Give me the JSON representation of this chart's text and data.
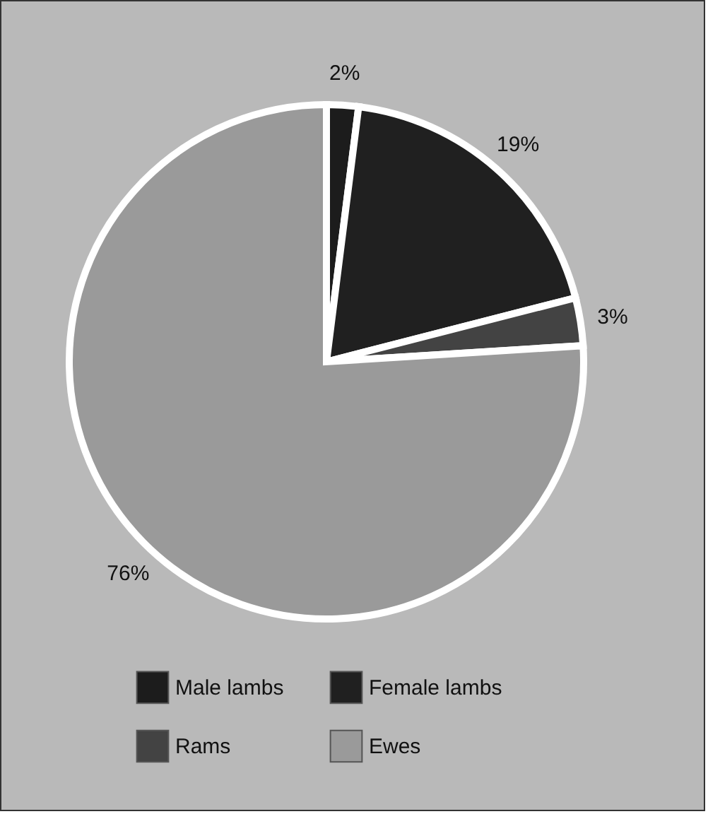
{
  "chart_data": {
    "type": "pie",
    "categories": [
      "Male lambs",
      "Female lambs",
      "Rams",
      "Ewes"
    ],
    "values": [
      2,
      19,
      3,
      76
    ],
    "colors": [
      "#1c1c1c",
      "#202020",
      "#434343",
      "#9a9a9a"
    ],
    "value_labels": [
      "2%",
      "19%",
      "3%",
      "76%"
    ],
    "legend": "bottom"
  }
}
